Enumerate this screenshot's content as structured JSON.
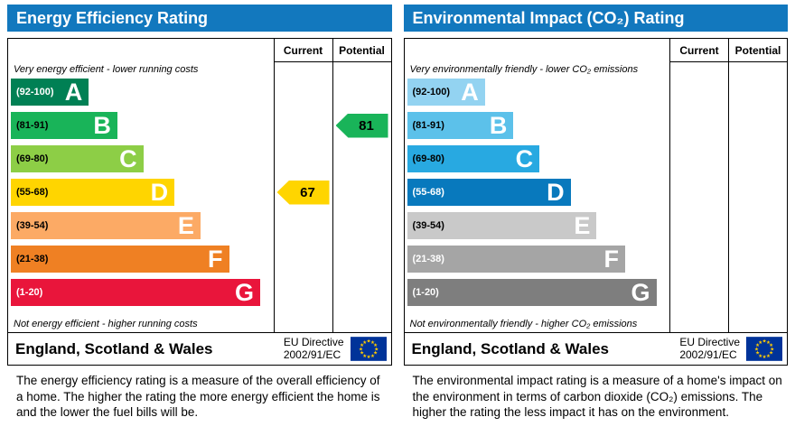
{
  "panels": [
    {
      "title": "Energy Efficiency Rating",
      "col_current": "Current",
      "col_potential": "Potential",
      "top_caption": "Very energy efficient - lower running costs",
      "bottom_caption": "Not energy efficient - higher running costs",
      "footer_region": "England, Scotland & Wales",
      "directive_line1": "EU Directive",
      "directive_line2": "2002/91/EC",
      "description": "The energy efficiency rating is a measure of the overall efficiency of a home. The higher the rating the more energy efficient the home is and the lower the fuel bills will be."
    },
    {
      "title": "Environmental Impact (CO₂) Rating",
      "col_current": "Current",
      "col_potential": "Potential",
      "top_caption": "Very environmentally friendly - lower CO₂ emissions",
      "bottom_caption": "Not environmentally friendly - higher CO₂ emissions",
      "footer_region": "England, Scotland & Wales",
      "directive_line1": "EU Directive",
      "directive_line2": "2002/91/EC",
      "description": "The environmental impact rating is a measure of a home's impact on the environment in terms of carbon dioxide (CO₂) emissions. The higher the rating the less impact it has on the environment."
    }
  ],
  "chart_data": [
    {
      "type": "bar",
      "title": "Energy Efficiency Rating",
      "categories": [
        "A",
        "B",
        "C",
        "D",
        "E",
        "F",
        "G"
      ],
      "ranges": [
        "(92-100)",
        "(81-91)",
        "(69-80)",
        "(55-68)",
        "(39-54)",
        "(21-38)",
        "(1-20)"
      ],
      "colors": [
        "#008054",
        "#19b459",
        "#8dce46",
        "#ffd500",
        "#fcaa65",
        "#ef8023",
        "#e9153b"
      ],
      "range_text_colors": [
        "#ffffff",
        "#000000",
        "#000000",
        "#000000",
        "#000000",
        "#000000",
        "#ffffff"
      ],
      "bar_width_pct": [
        30,
        41,
        51,
        63,
        73,
        84,
        96
      ],
      "current": {
        "value": 67,
        "band": "D",
        "color": "#ffd500"
      },
      "potential": {
        "value": 81,
        "band": "B",
        "color": "#19b459"
      }
    },
    {
      "type": "bar",
      "title": "Environmental Impact (CO₂) Rating",
      "categories": [
        "A",
        "B",
        "C",
        "D",
        "E",
        "F",
        "G"
      ],
      "ranges": [
        "(92-100)",
        "(81-91)",
        "(69-80)",
        "(55-68)",
        "(39-54)",
        "(21-38)",
        "(1-20)"
      ],
      "colors": [
        "#93d3f1",
        "#5cc1ea",
        "#28a9e1",
        "#0879bd",
        "#c9c9c9",
        "#a5a5a5",
        "#7e7e7e"
      ],
      "range_text_colors": [
        "#000000",
        "#000000",
        "#000000",
        "#ffffff",
        "#000000",
        "#ffffff",
        "#ffffff"
      ],
      "bar_width_pct": [
        30,
        41,
        51,
        63,
        73,
        84,
        96
      ],
      "current": null,
      "potential": null
    }
  ],
  "colors": {
    "header_bg": "#1278be",
    "flag_bg": "#003399",
    "flag_star": "#ffcc00"
  }
}
